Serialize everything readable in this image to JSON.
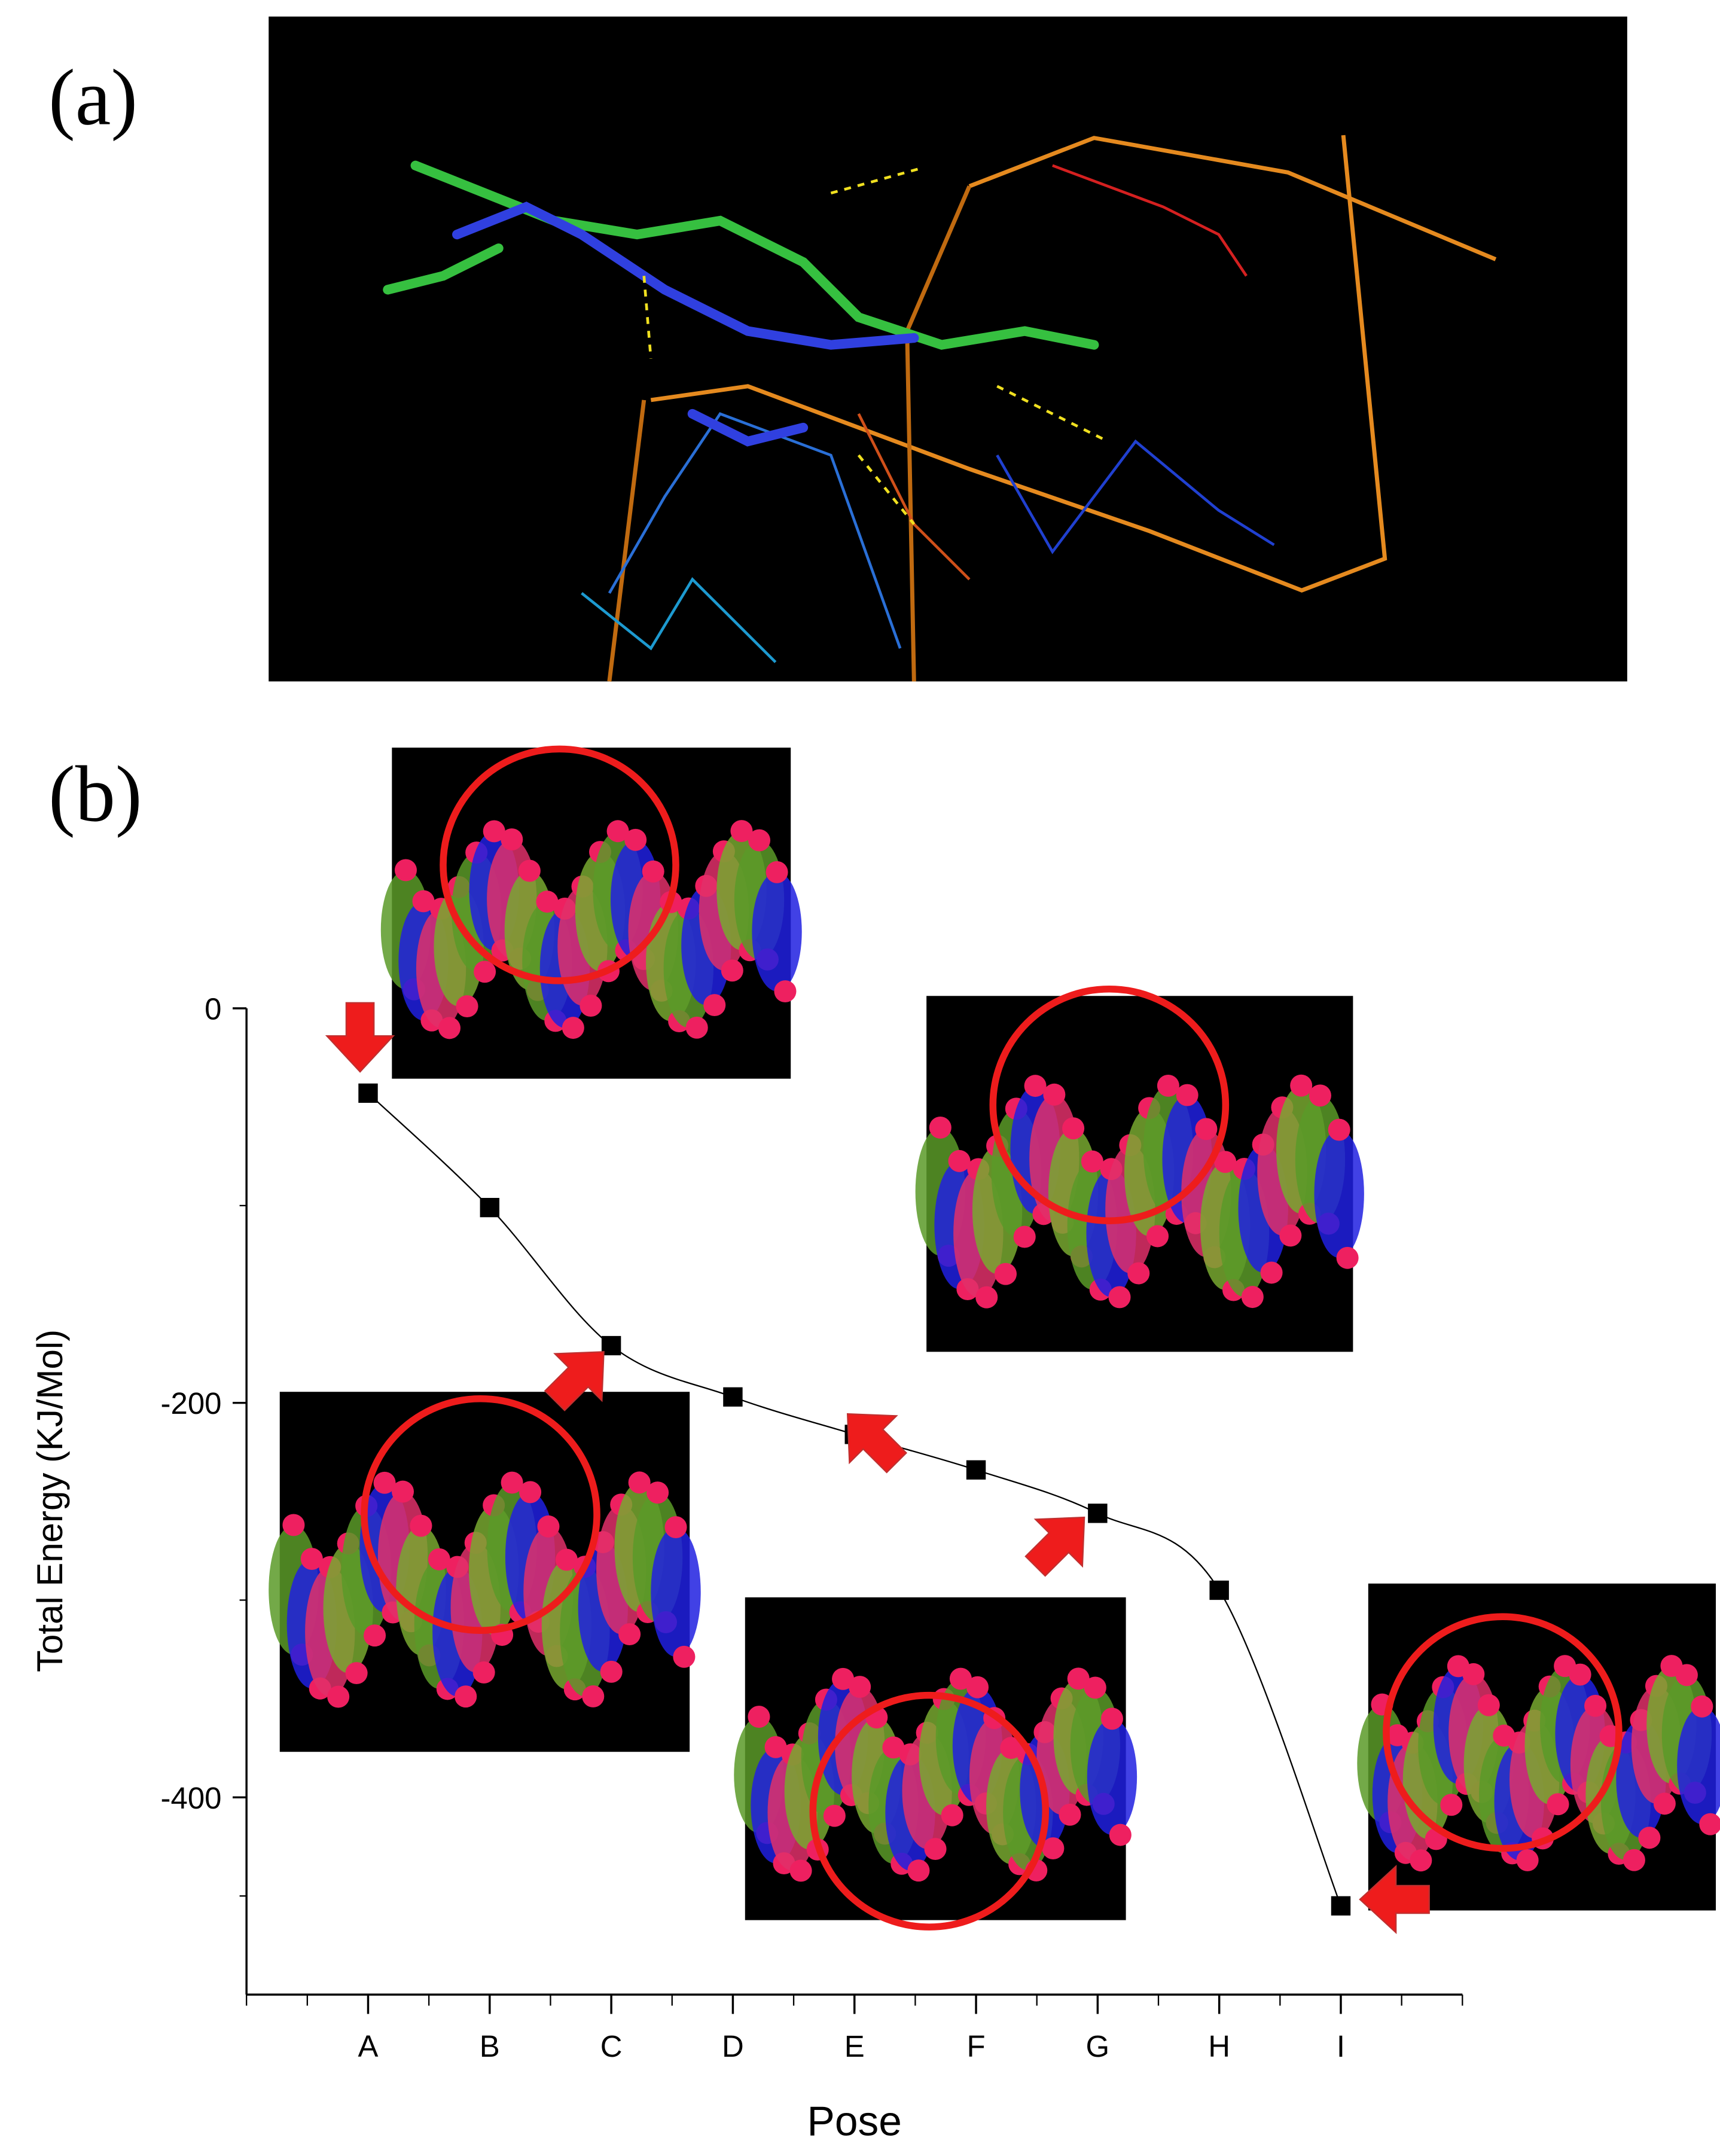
{
  "panel_a": {
    "label": "(a)"
  },
  "chart_data": {
    "type": "line",
    "panel_label": "(b)",
    "x_label": "Pose",
    "y_label": "Total Energy (KJ/Mol)",
    "categories": [
      "A",
      "B",
      "C",
      "D",
      "E",
      "F",
      "G",
      "H",
      "I"
    ],
    "values": [
      -43,
      -101,
      -171,
      -197,
      -216,
      -234,
      -256,
      -295,
      -455
    ],
    "color": "#000000",
    "ylim": [
      -500,
      0
    ],
    "yticks": [
      0,
      -200,
      -400
    ]
  }
}
